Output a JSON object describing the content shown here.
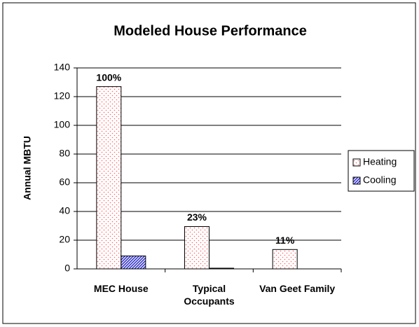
{
  "chart_data": {
    "type": "bar",
    "title": "Modeled House Performance",
    "y_label": "Annual MBTU",
    "categories": [
      "MEC House",
      "Typical Occupants",
      "Van Geet Family"
    ],
    "series": [
      {
        "name": "Heating",
        "color": "#ff6666",
        "values": [
          127,
          29.5,
          13.5
        ]
      },
      {
        "name": "Cooling",
        "color": "#3333cc",
        "values": [
          9,
          0.5,
          0
        ]
      }
    ],
    "annotations": [
      "100%",
      "23%",
      "11%"
    ],
    "ylim": [
      0,
      140
    ],
    "yticks": [
      0,
      20,
      40,
      60,
      80,
      100,
      120,
      140
    ],
    "grid": true,
    "legend": "right"
  }
}
